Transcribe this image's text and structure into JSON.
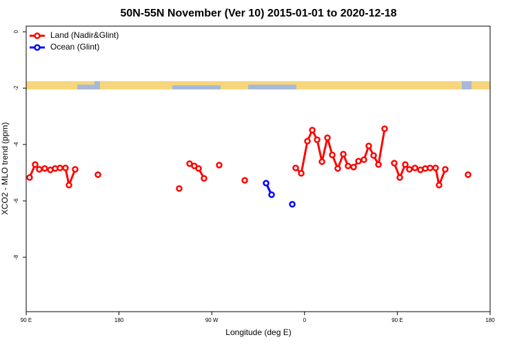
{
  "chart_data": {
    "type": "line",
    "title": "50N-55N November (Ver 10)   2015-01-01 to 2020-12-18",
    "x_label": "Longitude (deg E)",
    "y_label": "XCO2 - MLO trend (ppm)",
    "xlim": [
      90,
      540
    ],
    "ylim": [
      -9.93,
      0.2
    ],
    "xticks": [
      {
        "value": 90,
        "label": "90 E"
      },
      180,
      {
        "value": 270,
        "label": "90 W"
      },
      {
        "value": 360,
        "label": "0"
      },
      {
        "value": 450,
        "label": "90 E"
      },
      {
        "value": 540,
        "label": "180"
      }
    ],
    "yticks": [
      0,
      -2,
      -4,
      -6,
      -8
    ],
    "legend": "top-left",
    "series": [
      {
        "name": "Land (Nadir&Glint)",
        "color": "#ff0000",
        "x": [
          93.3,
          98.7,
          102.7,
          108.0,
          113.4,
          118.1,
          122.8,
          128.1,
          131.5,
          137.5,
          null,
          159.6,
          null,
          238.4,
          null,
          248.5,
          253.1,
          257.2,
          262.5,
          null,
          277.2,
          null,
          302.0,
          null,
          351.4,
          356.8,
          362.8,
          367.5,
          372.2,
          376.9,
          382.2,
          386.9,
          392.2,
          397.6,
          402.2,
          407.6,
          412.3,
          417.6,
          422.3,
          427.0,
          431.7,
          437.7,
          null,
          447.0,
          452.4,
          457.7,
          461.7,
          467.1,
          472.4,
          477.1,
          481.8,
          487.1,
          490.5,
          496.5,
          null,
          518.6
        ],
        "values": [
          -5.17,
          -4.71,
          -4.88,
          -4.85,
          -4.9,
          -4.85,
          -4.83,
          -4.83,
          -5.44,
          -4.88,
          null,
          -5.07,
          null,
          -5.56,
          null,
          -4.68,
          -4.76,
          -4.85,
          -5.2,
          null,
          -4.73,
          null,
          -5.27,
          null,
          -4.83,
          -5.02,
          -3.88,
          -3.49,
          -3.83,
          -4.61,
          -3.76,
          -4.37,
          -4.85,
          -4.34,
          -4.76,
          -4.8,
          -4.59,
          -4.54,
          -4.05,
          -4.39,
          -4.71,
          -3.44,
          null,
          -4.66,
          -5.17,
          -4.71,
          -4.88,
          -4.83,
          -4.9,
          -4.85,
          -4.83,
          -4.83,
          -5.44,
          -4.88,
          null,
          -5.07
        ]
      },
      {
        "name": "Ocean (Glint)",
        "color": "#0000ff",
        "x": [
          322.7,
          328.0,
          null,
          348.1
        ],
        "values": [
          -5.37,
          -5.78,
          null,
          -6.12
        ]
      }
    ]
  }
}
